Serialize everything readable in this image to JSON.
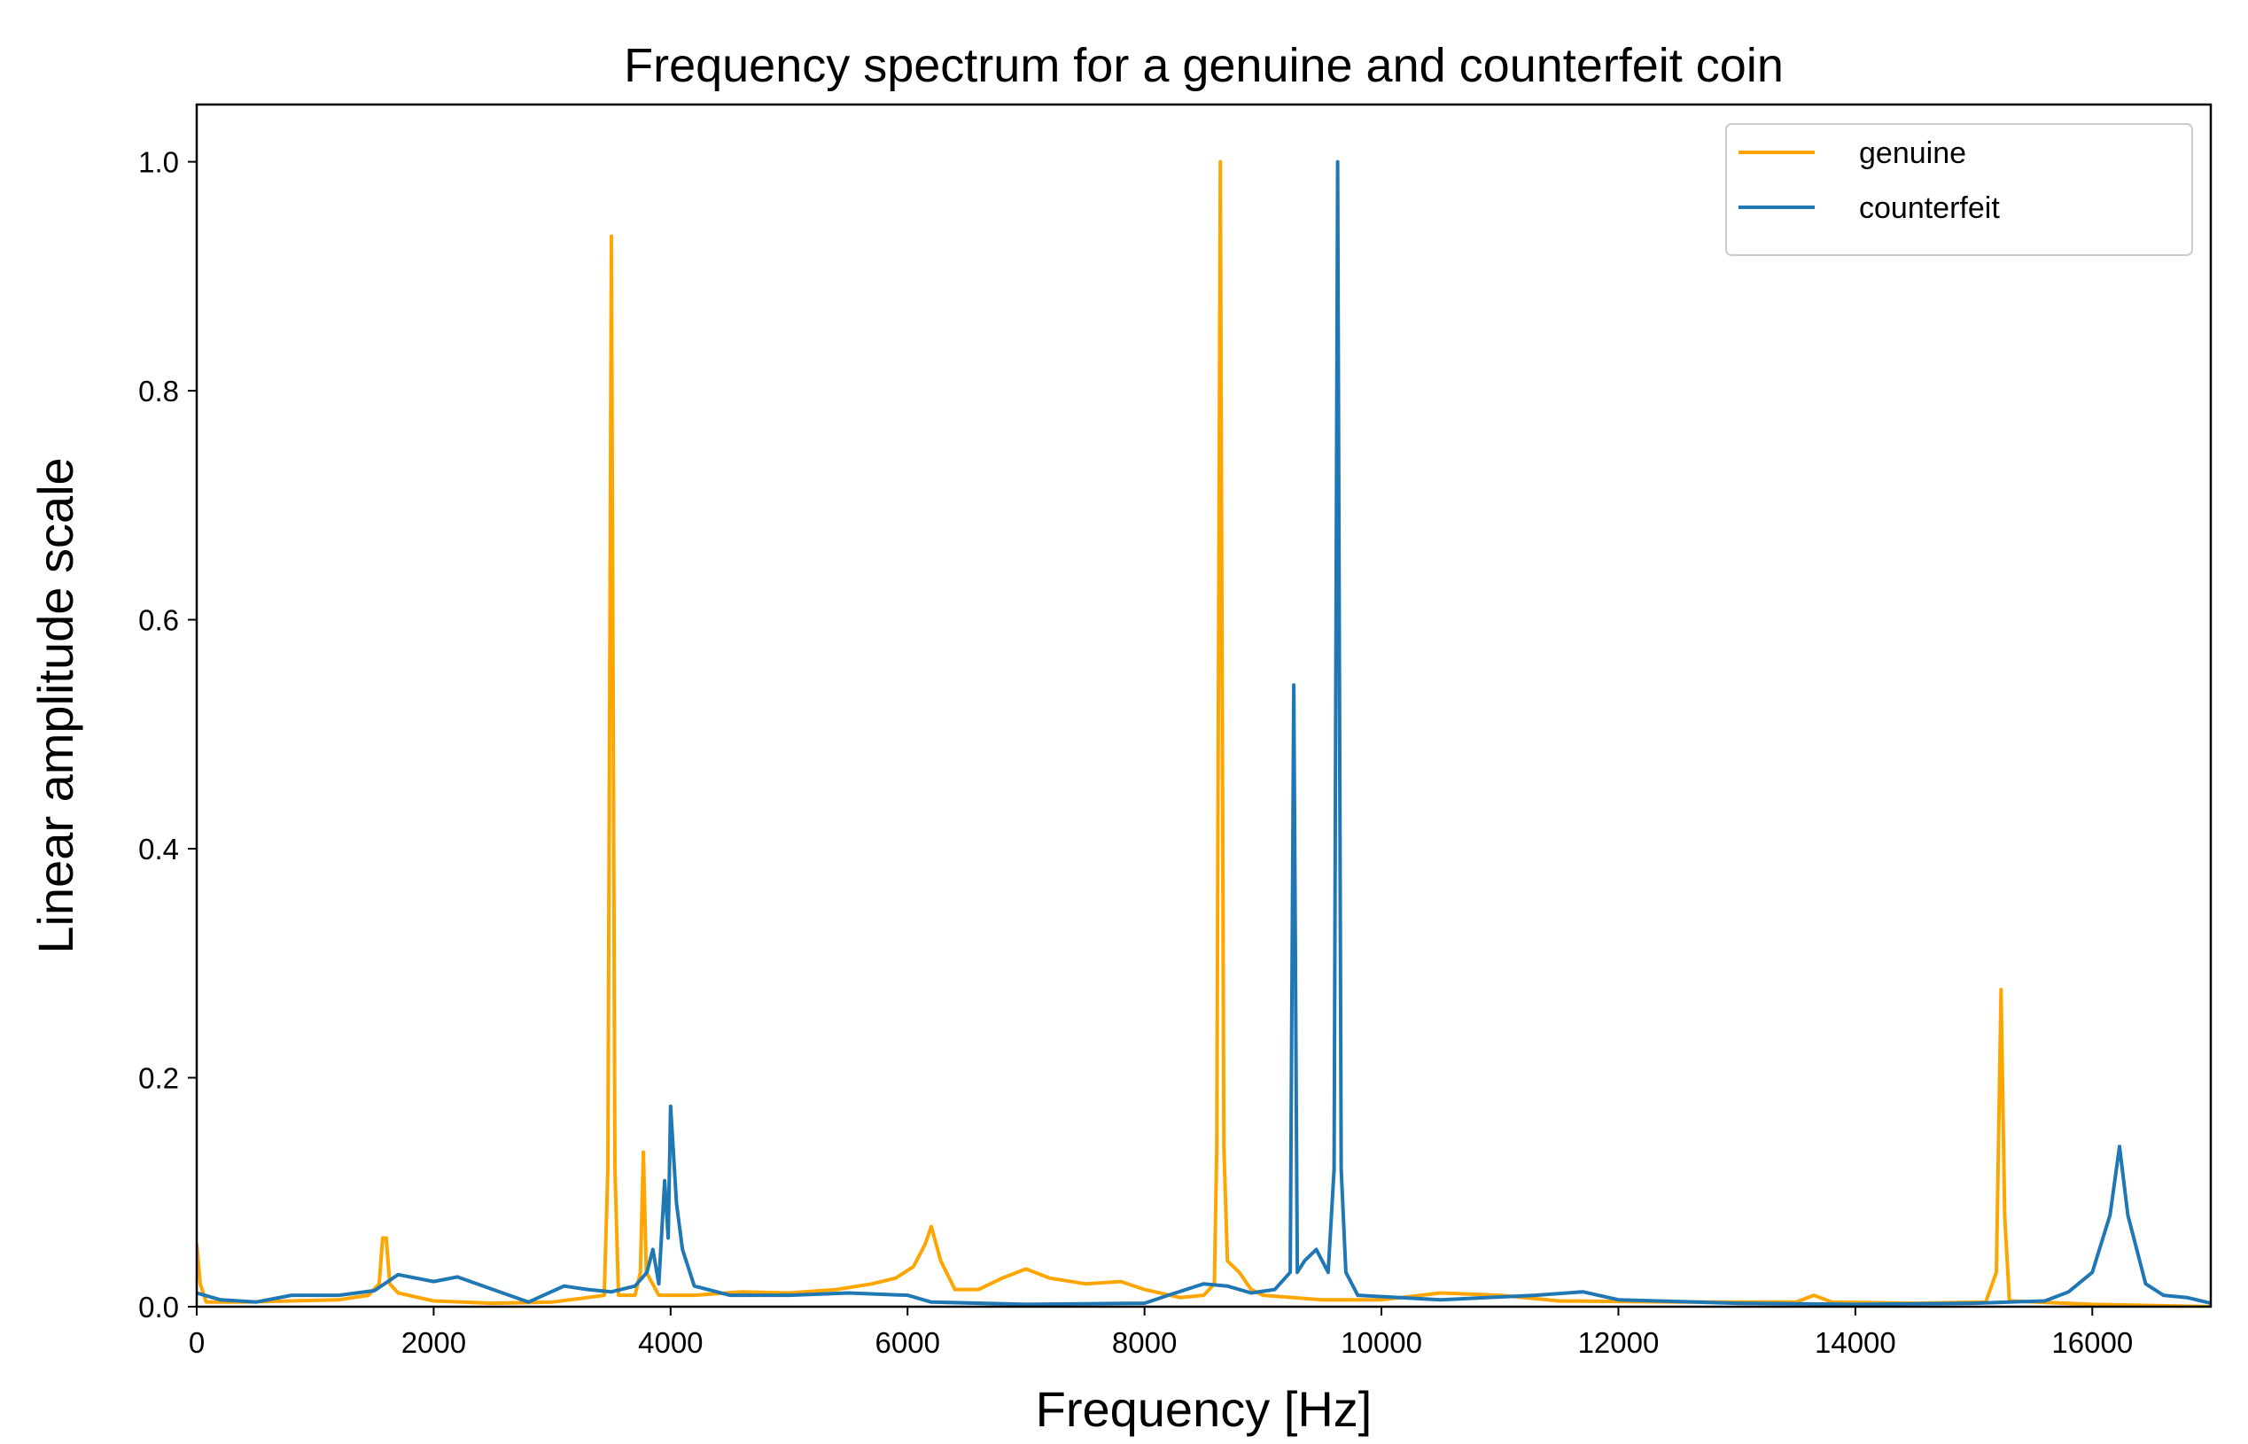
{
  "chart_data": {
    "type": "line",
    "title": "Frequency spectrum for a genuine and counterfeit coin",
    "xlabel": "Frequency [Hz]",
    "ylabel": "Linear amplitude scale",
    "xlim": [
      0,
      17000
    ],
    "ylim": [
      0,
      1.05
    ],
    "xticks": [
      0,
      2000,
      4000,
      6000,
      8000,
      10000,
      12000,
      14000,
      16000
    ],
    "xtick_labels": [
      "0",
      "2000",
      "4000",
      "6000",
      "8000",
      "10000",
      "12000",
      "14000",
      "16000"
    ],
    "yticks": [
      0,
      0.2,
      0.4,
      0.6,
      0.8,
      1.0
    ],
    "ytick_labels": [
      "0.0",
      "0.2",
      "0.4",
      "0.6",
      "0.8",
      "1.0"
    ],
    "grid": false,
    "legend_position": "top-right",
    "series": [
      {
        "name": "genuine",
        "color": "#FFA500",
        "points": [
          [
            0,
            0.055
          ],
          [
            30,
            0.02
          ],
          [
            80,
            0.004
          ],
          [
            400,
            0.004
          ],
          [
            800,
            0.005
          ],
          [
            1200,
            0.006
          ],
          [
            1450,
            0.01
          ],
          [
            1540,
            0.02
          ],
          [
            1570,
            0.06
          ],
          [
            1600,
            0.06
          ],
          [
            1630,
            0.02
          ],
          [
            1700,
            0.012
          ],
          [
            2000,
            0.005
          ],
          [
            2500,
            0.003
          ],
          [
            3000,
            0.004
          ],
          [
            3300,
            0.008
          ],
          [
            3440,
            0.01
          ],
          [
            3470,
            0.12
          ],
          [
            3500,
            0.935
          ],
          [
            3530,
            0.12
          ],
          [
            3560,
            0.01
          ],
          [
            3700,
            0.01
          ],
          [
            3745,
            0.03
          ],
          [
            3770,
            0.135
          ],
          [
            3795,
            0.03
          ],
          [
            3900,
            0.01
          ],
          [
            4200,
            0.01
          ],
          [
            4600,
            0.013
          ],
          [
            5000,
            0.012
          ],
          [
            5400,
            0.015
          ],
          [
            5700,
            0.02
          ],
          [
            5900,
            0.025
          ],
          [
            6050,
            0.035
          ],
          [
            6150,
            0.055
          ],
          [
            6200,
            0.07
          ],
          [
            6280,
            0.04
          ],
          [
            6400,
            0.015
          ],
          [
            6600,
            0.015
          ],
          [
            6800,
            0.025
          ],
          [
            7000,
            0.033
          ],
          [
            7200,
            0.025
          ],
          [
            7500,
            0.02
          ],
          [
            7800,
            0.022
          ],
          [
            8000,
            0.015
          ],
          [
            8300,
            0.008
          ],
          [
            8500,
            0.01
          ],
          [
            8590,
            0.02
          ],
          [
            8610,
            0.14
          ],
          [
            8640,
            1.0
          ],
          [
            8670,
            0.14
          ],
          [
            8700,
            0.04
          ],
          [
            8800,
            0.03
          ],
          [
            8900,
            0.015
          ],
          [
            9000,
            0.01
          ],
          [
            9500,
            0.006
          ],
          [
            10000,
            0.006
          ],
          [
            10500,
            0.012
          ],
          [
            11000,
            0.01
          ],
          [
            11500,
            0.005
          ],
          [
            12500,
            0.004
          ],
          [
            13500,
            0.004
          ],
          [
            13650,
            0.01
          ],
          [
            13800,
            0.004
          ],
          [
            14500,
            0.003
          ],
          [
            15100,
            0.004
          ],
          [
            15190,
            0.03
          ],
          [
            15230,
            0.277
          ],
          [
            15260,
            0.08
          ],
          [
            15300,
            0.005
          ],
          [
            16000,
            0.002
          ],
          [
            17000,
            0.0
          ]
        ]
      },
      {
        "name": "counterfeit",
        "color": "#1F77B4",
        "points": [
          [
            0,
            0.012
          ],
          [
            200,
            0.006
          ],
          [
            500,
            0.004
          ],
          [
            800,
            0.01
          ],
          [
            1200,
            0.01
          ],
          [
            1500,
            0.014
          ],
          [
            1700,
            0.028
          ],
          [
            2000,
            0.022
          ],
          [
            2200,
            0.026
          ],
          [
            2500,
            0.015
          ],
          [
            2800,
            0.004
          ],
          [
            3100,
            0.018
          ],
          [
            3300,
            0.015
          ],
          [
            3500,
            0.013
          ],
          [
            3700,
            0.018
          ],
          [
            3800,
            0.03
          ],
          [
            3850,
            0.05
          ],
          [
            3900,
            0.02
          ],
          [
            3950,
            0.11
          ],
          [
            3980,
            0.06
          ],
          [
            4000,
            0.175
          ],
          [
            4050,
            0.09
          ],
          [
            4100,
            0.05
          ],
          [
            4200,
            0.018
          ],
          [
            4500,
            0.01
          ],
          [
            5000,
            0.01
          ],
          [
            5500,
            0.012
          ],
          [
            6000,
            0.01
          ],
          [
            6200,
            0.004
          ],
          [
            7000,
            0.002
          ],
          [
            8000,
            0.003
          ],
          [
            8200,
            0.01
          ],
          [
            8500,
            0.02
          ],
          [
            8700,
            0.018
          ],
          [
            8900,
            0.012
          ],
          [
            9100,
            0.015
          ],
          [
            9230,
            0.03
          ],
          [
            9260,
            0.543
          ],
          [
            9290,
            0.03
          ],
          [
            9350,
            0.04
          ],
          [
            9450,
            0.05
          ],
          [
            9550,
            0.03
          ],
          [
            9600,
            0.12
          ],
          [
            9630,
            1.0
          ],
          [
            9660,
            0.12
          ],
          [
            9700,
            0.03
          ],
          [
            9800,
            0.01
          ],
          [
            10500,
            0.006
          ],
          [
            11300,
            0.01
          ],
          [
            11700,
            0.013
          ],
          [
            12000,
            0.006
          ],
          [
            13000,
            0.003
          ],
          [
            14000,
            0.002
          ],
          [
            15000,
            0.003
          ],
          [
            15600,
            0.005
          ],
          [
            15800,
            0.013
          ],
          [
            16000,
            0.03
          ],
          [
            16150,
            0.08
          ],
          [
            16230,
            0.14
          ],
          [
            16300,
            0.08
          ],
          [
            16450,
            0.02
          ],
          [
            16600,
            0.01
          ],
          [
            16800,
            0.008
          ],
          [
            17000,
            0.003
          ]
        ]
      }
    ]
  }
}
